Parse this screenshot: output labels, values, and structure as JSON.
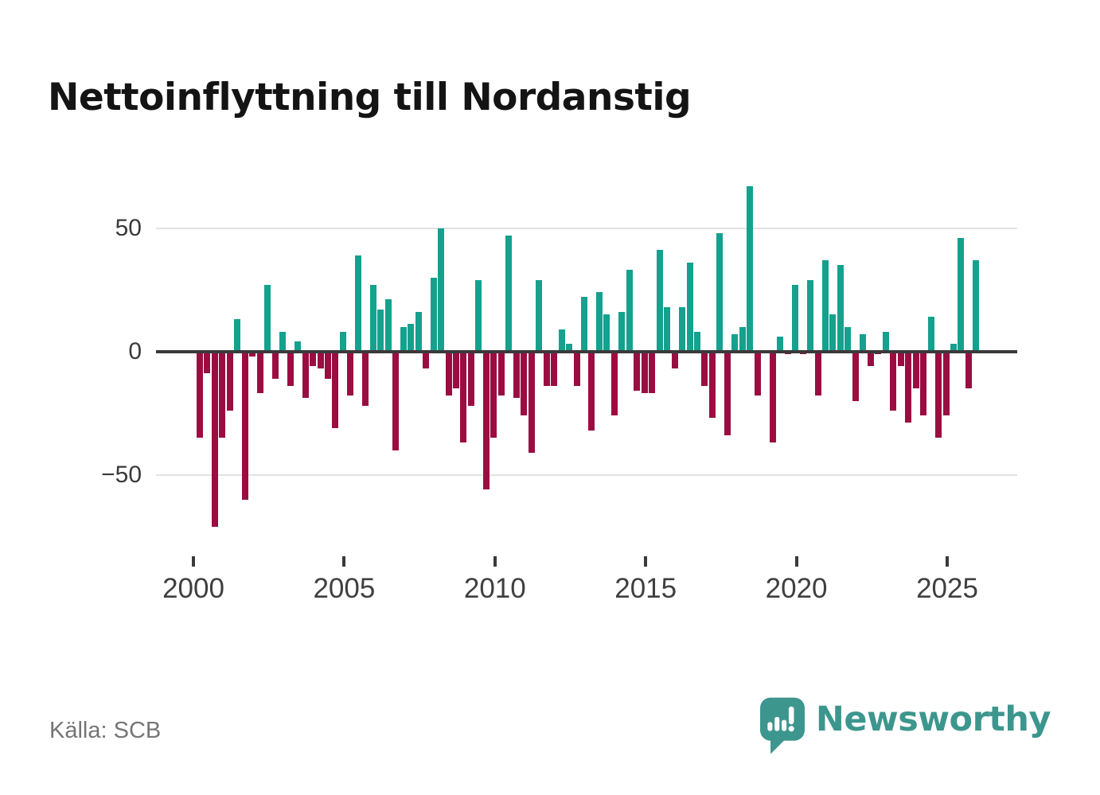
{
  "title": "Nettoinflyttning till Nordanstig",
  "source": "Källa: SCB",
  "logo": {
    "text": "Newsworthy",
    "icon": "speech-bubble-bar-chart-exclamation"
  },
  "colors": {
    "positive": "#14a18e",
    "negative": "#9b0d41",
    "axis": "#3a3a3a",
    "grid": "#e3e3e3",
    "tick_label": "#3f3f3f",
    "source_text": "#757575",
    "brand": "#3d968e",
    "title_text": "#141414"
  },
  "chart_data": {
    "type": "bar",
    "title": "Nettoinflyttning till Nordanstig",
    "xlabel": "",
    "ylabel": "",
    "x_period": "quarterly",
    "start": "2000 Q1",
    "end": "2025 Q4",
    "start_year": 2000,
    "values": [
      -35,
      -9,
      -71,
      -35,
      -24,
      13,
      -60,
      -2,
      -17,
      27,
      -11,
      8,
      -14,
      4,
      -19,
      -6,
      -7,
      -11,
      -31,
      8,
      -18,
      39,
      -22,
      27,
      17,
      21,
      -40,
      10,
      11,
      16,
      -7,
      30,
      50,
      -18,
      -15,
      -37,
      -22,
      29,
      -56,
      -35,
      -18,
      47,
      -19,
      -26,
      -41,
      29,
      -14,
      -14,
      9,
      3,
      -14,
      22,
      -32,
      24,
      15,
      -26,
      16,
      33,
      -16,
      -17,
      -17,
      41,
      18,
      -7,
      18,
      36,
      8,
      -14,
      -27,
      48,
      -34,
      7,
      10,
      67,
      -18,
      0,
      -37,
      6,
      -1,
      27,
      -1,
      29,
      -18,
      37,
      15,
      35,
      10,
      -20,
      7,
      -6,
      -1,
      8,
      -24,
      -6,
      -29,
      -15,
      -26,
      14,
      -35,
      -26,
      3,
      46,
      -15,
      37
    ],
    "x_tick_labels": [
      "2000",
      "2005",
      "2010",
      "2015",
      "2020",
      "2025"
    ],
    "y_ticks": [
      50,
      0,
      -50
    ],
    "y_tick_labels": [
      "50",
      "0",
      "−50"
    ],
    "ylim": [
      -75,
      70
    ],
    "grid": "horizontal",
    "legend": "none",
    "positive_color": "#14a18e",
    "negative_color": "#9b0d41"
  }
}
